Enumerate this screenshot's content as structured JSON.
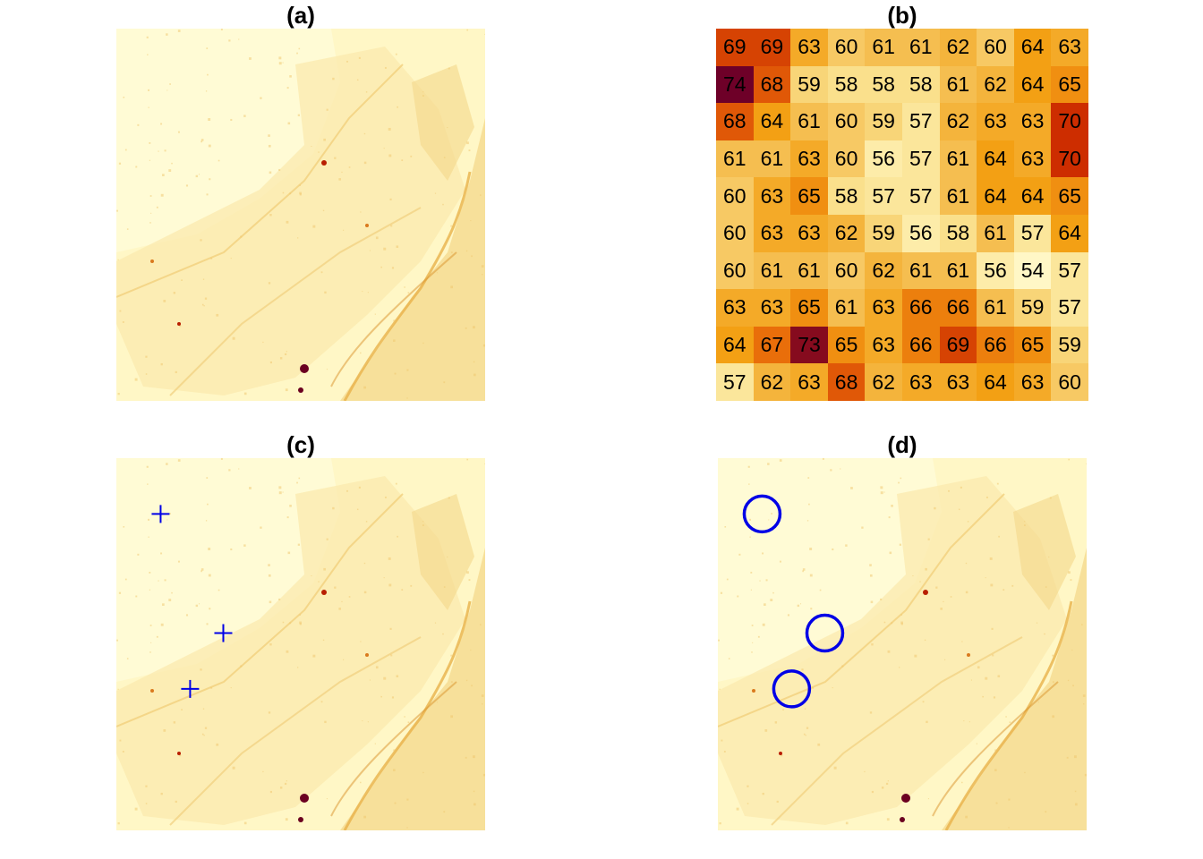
{
  "panels": {
    "a": {
      "title": "(a)"
    },
    "b": {
      "title": "(b)"
    },
    "c": {
      "title": "(c)"
    },
    "d": {
      "title": "(d)"
    }
  },
  "colors": {
    "background_light": "#fff7c6",
    "background_mid": "#fbeaae",
    "sea": "#f7e09a",
    "urban": "#f4d78a",
    "hotspot": "#b81e00",
    "dark_hotspot": "#6b0020",
    "marker": "#0000e6"
  },
  "chart_data": [
    {
      "type": "heatmap",
      "panel": "(a)",
      "description_colormap": "heat (yellow-orange-red-darkred)"
    },
    {
      "type": "heatmap",
      "panel": "(b)",
      "rows": 10,
      "cols": 10,
      "values": [
        [
          69,
          69,
          63,
          60,
          61,
          61,
          62,
          60,
          64,
          63
        ],
        [
          74,
          68,
          59,
          58,
          58,
          58,
          61,
          62,
          64,
          65
        ],
        [
          68,
          64,
          61,
          60,
          59,
          57,
          62,
          63,
          63,
          70
        ],
        [
          61,
          61,
          63,
          60,
          56,
          57,
          61,
          64,
          63,
          70
        ],
        [
          60,
          63,
          65,
          58,
          57,
          57,
          61,
          64,
          64,
          65
        ],
        [
          60,
          63,
          63,
          62,
          59,
          56,
          58,
          61,
          57,
          64
        ],
        [
          60,
          61,
          61,
          60,
          62,
          61,
          61,
          56,
          54,
          57
        ],
        [
          63,
          63,
          65,
          61,
          63,
          66,
          66,
          61,
          59,
          57
        ],
        [
          64,
          67,
          73,
          65,
          63,
          66,
          69,
          66,
          65,
          59
        ],
        [
          57,
          62,
          63,
          68,
          62,
          63,
          63,
          64,
          63,
          60
        ]
      ]
    },
    {
      "type": "scatter",
      "panel": "(c)",
      "marker": "plus",
      "points": [
        [
          0.12,
          0.85
        ],
        [
          0.29,
          0.53
        ],
        [
          0.2,
          0.38
        ]
      ]
    },
    {
      "type": "scatter",
      "panel": "(d)",
      "marker": "circle",
      "points": [
        [
          0.12,
          0.85
        ],
        [
          0.29,
          0.53
        ],
        [
          0.2,
          0.38
        ]
      ]
    }
  ]
}
